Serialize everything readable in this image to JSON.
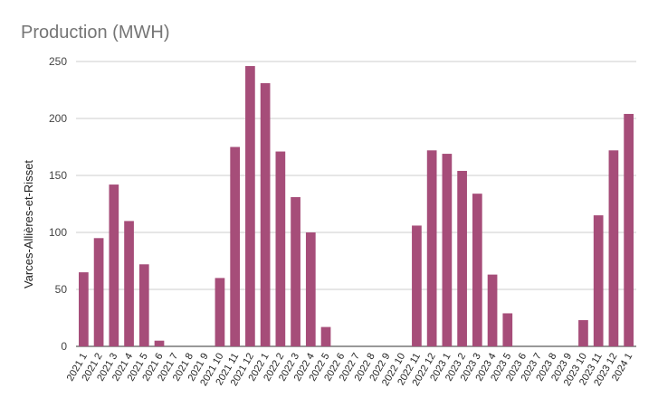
{
  "chart_data": {
    "type": "bar",
    "title": "Production (MWH)",
    "xlabel": "",
    "ylabel": "Varces-Allières-et-Risset",
    "ylim": [
      0,
      250
    ],
    "yticks": [
      0,
      50,
      100,
      150,
      200,
      250
    ],
    "grid": true,
    "legend": "none",
    "bar_color": "#a64d79",
    "categories": [
      "2021 1",
      "2021 2",
      "2021 3",
      "2021 4",
      "2021 5",
      "2021 6",
      "2021 7",
      "2021 8",
      "2021 9",
      "2021 10",
      "2021 11",
      "2021 12",
      "2022 1",
      "2022 2",
      "2022 3",
      "2022 4",
      "2022 5",
      "2022 6",
      "2022 7",
      "2022 8",
      "2022 9",
      "2022 10",
      "2022 11",
      "2022 12",
      "2023 1",
      "2023 2",
      "2023 3",
      "2023 4",
      "2023 5",
      "2023 6",
      "2023 7",
      "2023 8",
      "2023 9",
      "2023 10",
      "2023 11",
      "2023 12",
      "2024 1"
    ],
    "values": [
      65,
      95,
      142,
      110,
      72,
      5,
      0,
      0,
      0,
      60,
      175,
      246,
      231,
      171,
      131,
      100,
      17,
      0,
      0,
      0,
      0,
      0,
      106,
      172,
      169,
      154,
      134,
      63,
      29,
      0,
      0,
      0,
      0,
      23,
      115,
      172,
      204
    ]
  }
}
